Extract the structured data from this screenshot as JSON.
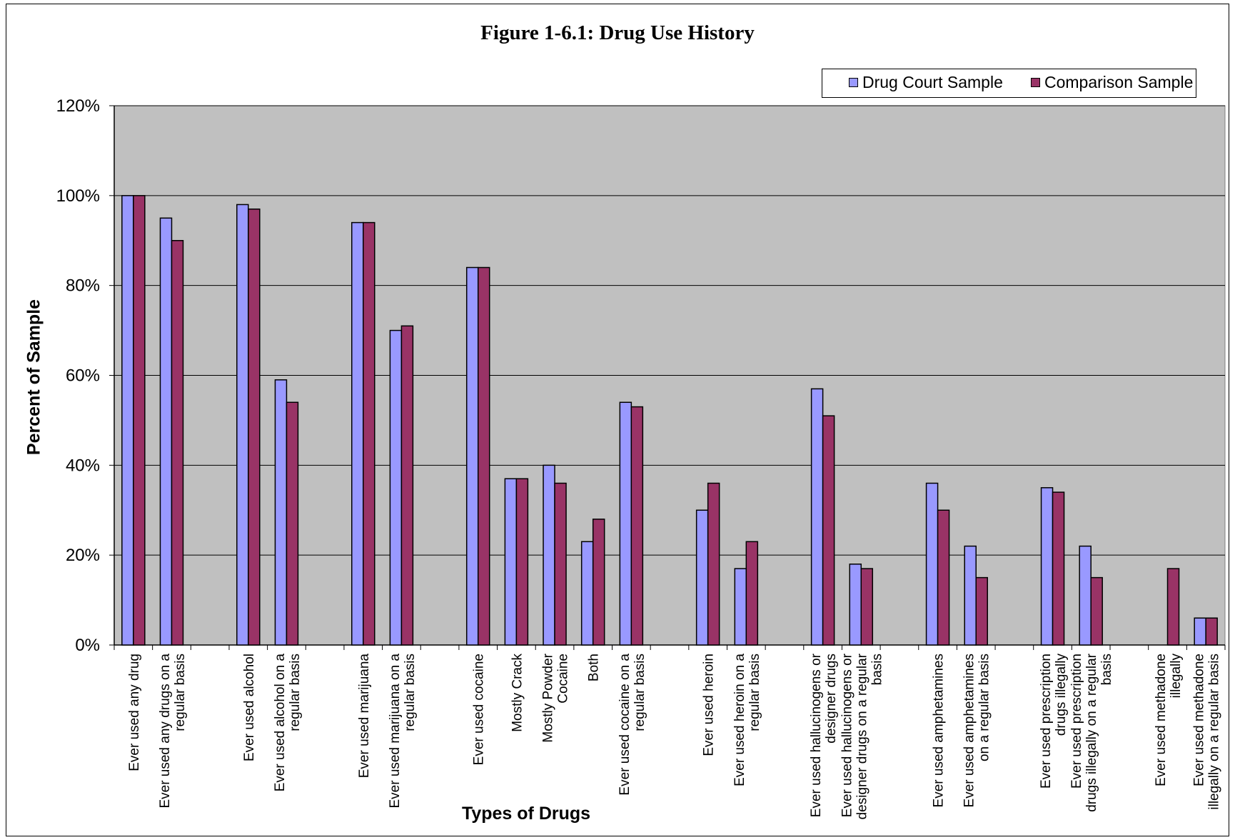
{
  "chart_data": {
    "type": "bar",
    "title": "Figure 1-6.1: Drug Use History",
    "xlabel": "Types of Drugs",
    "ylabel": "Percent of Sample",
    "ylim": [
      0,
      120
    ],
    "yticks": [
      "0%",
      "20%",
      "40%",
      "60%",
      "80%",
      "100%",
      "120%"
    ],
    "grid": true,
    "legend_position": "top-right",
    "categories": [
      [
        "Ever used any drug"
      ],
      [
        "Ever used any drugs on a",
        "regular basis"
      ],
      [],
      [
        "Ever used alcohol"
      ],
      [
        "Ever used alcohol on a",
        "regular basis"
      ],
      [],
      [
        "Ever used marijuana"
      ],
      [
        "Ever used marijuana on a",
        "regular basis"
      ],
      [],
      [
        "Ever used cocaine"
      ],
      [
        "Mostly Crack"
      ],
      [
        "Mostly Powder",
        "Cocaine"
      ],
      [
        "Both"
      ],
      [
        "Ever used cocaine on a",
        "regular basis"
      ],
      [],
      [
        "Ever used heroin"
      ],
      [
        "Ever used heroin on a",
        "regular basis"
      ],
      [],
      [
        "Ever used hallucinogens or",
        "designer drugs"
      ],
      [
        "Ever used hallucinogens or",
        "designer drugs on a regular",
        "basis"
      ],
      [],
      [
        "Ever used amphetamines"
      ],
      [
        "Ever used amphetamines",
        "on a regular basis"
      ],
      [],
      [
        "Ever used prescription",
        "drugs illegally"
      ],
      [
        "Ever used prescription",
        "drugs illegally on a regular",
        "basis"
      ],
      [],
      [
        "Ever used methadone",
        "illegally"
      ],
      [
        "Ever used methadone",
        "illegally on a regular basis"
      ]
    ],
    "series": [
      {
        "name": "Drug Court Sample",
        "color": "#9999FF",
        "values": [
          100,
          95,
          null,
          98,
          59,
          null,
          94,
          70,
          null,
          84,
          37,
          40,
          23,
          54,
          null,
          30,
          17,
          null,
          57,
          18,
          null,
          36,
          22,
          null,
          35,
          22,
          null,
          0,
          6
        ]
      },
      {
        "name": "Comparison Sample",
        "color": "#993366",
        "values": [
          100,
          90,
          null,
          97,
          54,
          null,
          94,
          71,
          null,
          84,
          37,
          36,
          28,
          53,
          null,
          36,
          23,
          null,
          51,
          17,
          null,
          30,
          15,
          null,
          34,
          15,
          null,
          17,
          6
        ]
      }
    ],
    "plot_background": "#C0C0C0"
  }
}
